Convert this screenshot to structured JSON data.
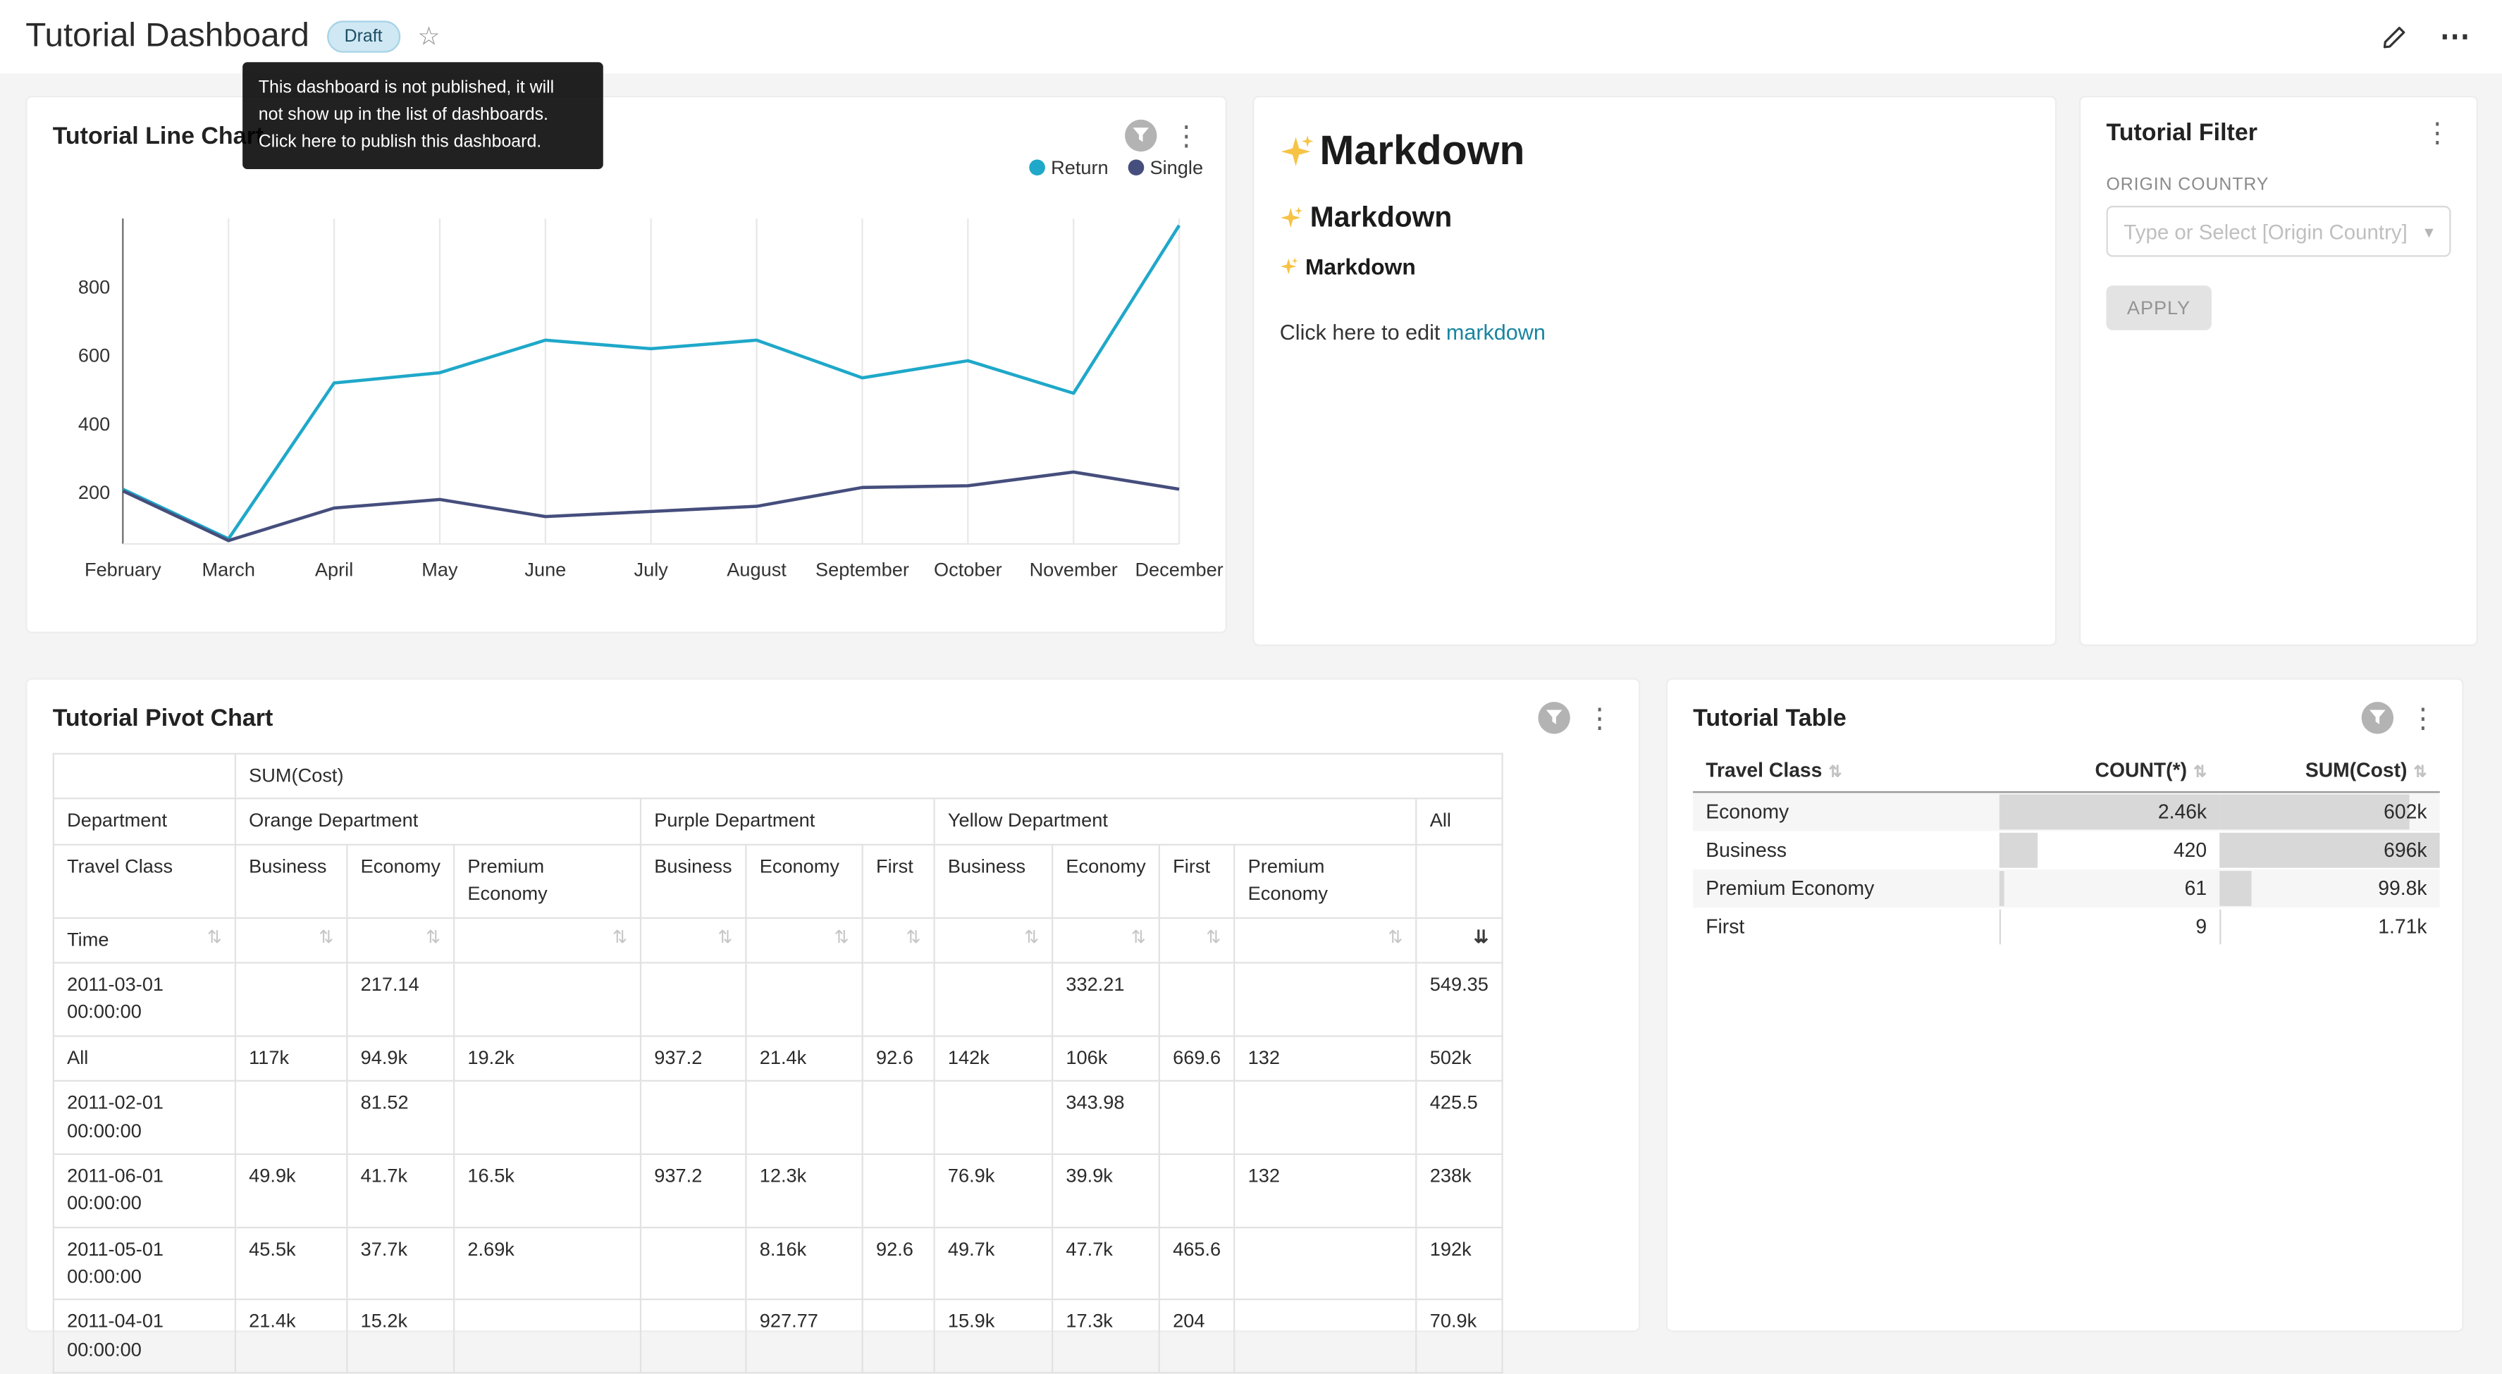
{
  "icons": {
    "more_vertical": "⋮",
    "more_horizontal": "⋯",
    "star": "☆",
    "sort": "⇅",
    "sort_desc": "⇊",
    "caret_down": "▾"
  },
  "header": {
    "title": "Tutorial Dashboard",
    "draft_badge": "Draft",
    "tooltip_lines": [
      "This dashboard is not published, it will",
      "not show up in the list of dashboards.",
      "Click here to publish this dashboard."
    ]
  },
  "line_chart_card": {
    "title": "Tutorial Line Chart",
    "legend": [
      "Return",
      "Single"
    ]
  },
  "chart_data": {
    "type": "line",
    "title": "Tutorial Line Chart",
    "categories": [
      "February",
      "March",
      "April",
      "May",
      "June",
      "July",
      "August",
      "September",
      "October",
      "November",
      "December"
    ],
    "series": [
      {
        "name": "Return",
        "color": "#1FA8C9",
        "values": [
          210,
          65,
          520,
          550,
          645,
          620,
          645,
          535,
          585,
          490,
          980
        ]
      },
      {
        "name": "Single",
        "color": "#454E7C",
        "values": [
          205,
          60,
          155,
          180,
          130,
          145,
          160,
          215,
          220,
          260,
          210
        ]
      }
    ],
    "yticks": [
      200,
      400,
      600,
      800
    ],
    "ylim": [
      50,
      1000
    ],
    "legend_position": "top-right",
    "grid": "vertical"
  },
  "markdown_card": {
    "h1": "Markdown",
    "h2": "Markdown",
    "h3": "Markdown",
    "cta_prefix": "Click here to edit ",
    "cta_link": "markdown"
  },
  "filter_card": {
    "title": "Tutorial Filter",
    "label": "ORIGIN COUNTRY",
    "placeholder": "Type or Select [Origin Country]",
    "apply_label": "APPLY"
  },
  "pivot_card": {
    "title": "Tutorial Pivot Chart",
    "measure": "SUM(Cost)",
    "dept_header": "Department",
    "class_header": "Travel Class",
    "time_header": "Time",
    "col_groups": [
      {
        "label": "Orange Department",
        "span": 3
      },
      {
        "label": "Purple Department",
        "span": 3
      },
      {
        "label": "Yellow Department",
        "span": 4
      },
      {
        "label": "All",
        "span": 1
      }
    ],
    "classes": [
      "Business",
      "Economy",
      "Premium Economy",
      "Business",
      "Economy",
      "First",
      "Business",
      "Economy",
      "First",
      "Premium Economy"
    ],
    "rows": [
      {
        "time": "2011-03-01 00:00:00",
        "values": [
          "",
          "217.14",
          "",
          "",
          "",
          "",
          "",
          "332.21",
          "",
          "",
          "549.35"
        ]
      },
      {
        "time": "All",
        "values": [
          "117k",
          "94.9k",
          "19.2k",
          "937.2",
          "21.4k",
          "92.6",
          "142k",
          "106k",
          "669.6",
          "132",
          "502k"
        ]
      },
      {
        "time": "2011-02-01 00:00:00",
        "values": [
          "",
          "81.52",
          "",
          "",
          "",
          "",
          "",
          "343.98",
          "",
          "",
          "425.5"
        ]
      },
      {
        "time": "2011-06-01 00:00:00",
        "values": [
          "49.9k",
          "41.7k",
          "16.5k",
          "937.2",
          "12.3k",
          "",
          "76.9k",
          "39.9k",
          "",
          "132",
          "238k"
        ]
      },
      {
        "time": "2011-05-01 00:00:00",
        "values": [
          "45.5k",
          "37.7k",
          "2.69k",
          "",
          "8.16k",
          "92.6",
          "49.7k",
          "47.7k",
          "465.6",
          "",
          "192k"
        ]
      },
      {
        "time": "2011-04-01 00:00:00",
        "values": [
          "21.4k",
          "15.2k",
          "",
          "",
          "927.77",
          "",
          "15.9k",
          "17.3k",
          "204",
          "",
          "70.9k"
        ]
      }
    ]
  },
  "table_card": {
    "title": "Tutorial Table",
    "columns": [
      "Travel Class",
      "COUNT(*)",
      "SUM(Cost)"
    ],
    "rows": [
      {
        "travel_class": "Economy",
        "count_display": "2.46k",
        "count_value": 2460,
        "sum_display": "602k",
        "sum_value": 602000
      },
      {
        "travel_class": "Business",
        "count_display": "420",
        "count_value": 420,
        "sum_display": "696k",
        "sum_value": 696000
      },
      {
        "travel_class": "Premium Economy",
        "count_display": "61",
        "count_value": 61,
        "sum_display": "99.8k",
        "sum_value": 99800
      },
      {
        "travel_class": "First",
        "count_display": "9",
        "count_value": 9,
        "sum_display": "1.71k",
        "sum_value": 1710
      }
    ]
  }
}
